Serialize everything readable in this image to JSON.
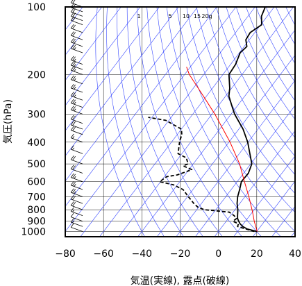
{
  "chart_data": {
    "type": "skew-t",
    "xlabel": "気温(実線), 露点(破線)",
    "ylabel": "気圧(hPa)",
    "xlim": [
      -80,
      40
    ],
    "ylim": [
      1050,
      100
    ],
    "x_ticks": [
      -80,
      -60,
      -40,
      -20,
      0,
      20,
      40
    ],
    "y_ticks": [
      100,
      200,
      300,
      400,
      500,
      600,
      700,
      800,
      900,
      1000
    ],
    "mixing_ratio_labels": [
      "1",
      "5",
      "10",
      "15",
      "20g"
    ],
    "series": [
      {
        "kind": "temperature",
        "style": "solid",
        "color": "#000000",
        "points": [
          {
            "p": 1000,
            "t": 20.2
          },
          {
            "p": 975,
            "t": 14.0
          },
          {
            "p": 950,
            "t": 10.7
          },
          {
            "p": 925,
            "t": 8.3
          },
          {
            "p": 900,
            "t": 6.5
          },
          {
            "p": 875,
            "t": 4.8
          },
          {
            "p": 850,
            "t": 3.7
          },
          {
            "p": 800,
            "t": 1.5
          },
          {
            "p": 750,
            "t": -1.4
          },
          {
            "p": 700,
            "t": -3.8
          },
          {
            "p": 650,
            "t": -5.6
          },
          {
            "p": 600,
            "t": -7.8
          },
          {
            "p": 550,
            "t": -7.5
          },
          {
            "p": 500,
            "t": -9.4
          },
          {
            "p": 450,
            "t": -14.5
          },
          {
            "p": 400,
            "t": -20.2
          },
          {
            "p": 350,
            "t": -27.8
          },
          {
            "p": 300,
            "t": -38.2
          },
          {
            "p": 280,
            "t": -42.0
          },
          {
            "p": 250,
            "t": -48.2
          },
          {
            "p": 230,
            "t": -51.0
          },
          {
            "p": 200,
            "t": -56.8
          },
          {
            "p": 180,
            "t": -57.4
          },
          {
            "p": 160,
            "t": -59.6
          },
          {
            "p": 150,
            "t": -58.6
          },
          {
            "p": 140,
            "t": -61.8
          },
          {
            "p": 130,
            "t": -62.4
          },
          {
            "p": 120,
            "t": -59.5
          },
          {
            "p": 110,
            "t": -63.0
          },
          {
            "p": 100,
            "t": -64.7
          }
        ]
      },
      {
        "kind": "dewpoint",
        "style": "dashed",
        "color": "#000000",
        "points": [
          {
            "p": 1000,
            "t": 18.8
          },
          {
            "p": 975,
            "t": 13.4
          },
          {
            "p": 950,
            "t": 8.0
          },
          {
            "p": 925,
            "t": 7.4
          },
          {
            "p": 900,
            "t": 3.5
          },
          {
            "p": 875,
            "t": 4.3
          },
          {
            "p": 850,
            "t": 1.9
          },
          {
            "p": 820,
            "t": -2.0
          },
          {
            "p": 800,
            "t": -16.0
          },
          {
            "p": 780,
            "t": -20.3
          },
          {
            "p": 750,
            "t": -24.0
          },
          {
            "p": 700,
            "t": -29.5
          },
          {
            "p": 650,
            "t": -35.2
          },
          {
            "p": 620,
            "t": -42.0
          },
          {
            "p": 600,
            "t": -50.5
          },
          {
            "p": 570,
            "t": -48.8
          },
          {
            "p": 560,
            "t": -44.0
          },
          {
            "p": 545,
            "t": -41.2
          },
          {
            "p": 530,
            "t": -38.5
          },
          {
            "p": 510,
            "t": -44.5
          },
          {
            "p": 500,
            "t": -42.7
          },
          {
            "p": 470,
            "t": -46.0
          },
          {
            "p": 450,
            "t": -52.0
          },
          {
            "p": 400,
            "t": -55.8
          },
          {
            "p": 370,
            "t": -57.6
          },
          {
            "p": 350,
            "t": -60.0
          },
          {
            "p": 320,
            "t": -71.6
          },
          {
            "p": 310,
            "t": -82.0
          }
        ]
      },
      {
        "kind": "parcel-path",
        "style": "solid",
        "color": "#ff0000",
        "points": [
          {
            "p": 1000,
            "t": 20.2
          },
          {
            "p": 950,
            "t": 17.5
          },
          {
            "p": 900,
            "t": 14.6
          },
          {
            "p": 850,
            "t": 11.9
          },
          {
            "p": 800,
            "t": 8.9
          },
          {
            "p": 700,
            "t": 2.1
          },
          {
            "p": 600,
            "t": -6.2
          },
          {
            "p": 500,
            "t": -15.8
          },
          {
            "p": 400,
            "t": -29.4
          },
          {
            "p": 300,
            "t": -48.5
          },
          {
            "p": 250,
            "t": -61.5
          },
          {
            "p": 200,
            "t": -77.5
          },
          {
            "p": 185,
            "t": -82.0
          }
        ]
      }
    ],
    "wind_profile": [
      {
        "p": 1000,
        "speed_kt": 10
      },
      {
        "p": 950,
        "speed_kt": 15
      },
      {
        "p": 900,
        "speed_kt": 10
      },
      {
        "p": 850,
        "speed_kt": 15
      },
      {
        "p": 800,
        "speed_kt": 20
      },
      {
        "p": 750,
        "speed_kt": 20
      },
      {
        "p": 700,
        "speed_kt": 25
      },
      {
        "p": 650,
        "speed_kt": 25
      },
      {
        "p": 600,
        "speed_kt": 25
      },
      {
        "p": 550,
        "speed_kt": 20
      },
      {
        "p": 500,
        "speed_kt": 20
      },
      {
        "p": 450,
        "speed_kt": 15
      },
      {
        "p": 400,
        "speed_kt": 15
      },
      {
        "p": 370,
        "speed_kt": 20
      },
      {
        "p": 350,
        "speed_kt": 20
      },
      {
        "p": 330,
        "speed_kt": 20
      },
      {
        "p": 300,
        "speed_kt": 25
      },
      {
        "p": 280,
        "speed_kt": 25
      },
      {
        "p": 260,
        "speed_kt": 25
      },
      {
        "p": 240,
        "speed_kt": 25
      },
      {
        "p": 220,
        "speed_kt": 25
      },
      {
        "p": 200,
        "speed_kt": 25
      },
      {
        "p": 190,
        "speed_kt": 25
      },
      {
        "p": 180,
        "speed_kt": 25
      },
      {
        "p": 160,
        "speed_kt": 25
      },
      {
        "p": 150,
        "speed_kt": 25
      },
      {
        "p": 140,
        "speed_kt": 20
      },
      {
        "p": 130,
        "speed_kt": 20
      },
      {
        "p": 120,
        "speed_kt": 20
      },
      {
        "p": 115,
        "speed_kt": 20
      },
      {
        "p": 110,
        "speed_kt": 20
      },
      {
        "p": 105,
        "speed_kt": 20
      },
      {
        "p": 100,
        "speed_kt": 20
      }
    ],
    "colors": {
      "grid": "#000000",
      "dry_adiabat": "#3344ff",
      "isotherm": "#3344ff",
      "parcel": "#ff0000",
      "sounding": "#000000"
    }
  }
}
